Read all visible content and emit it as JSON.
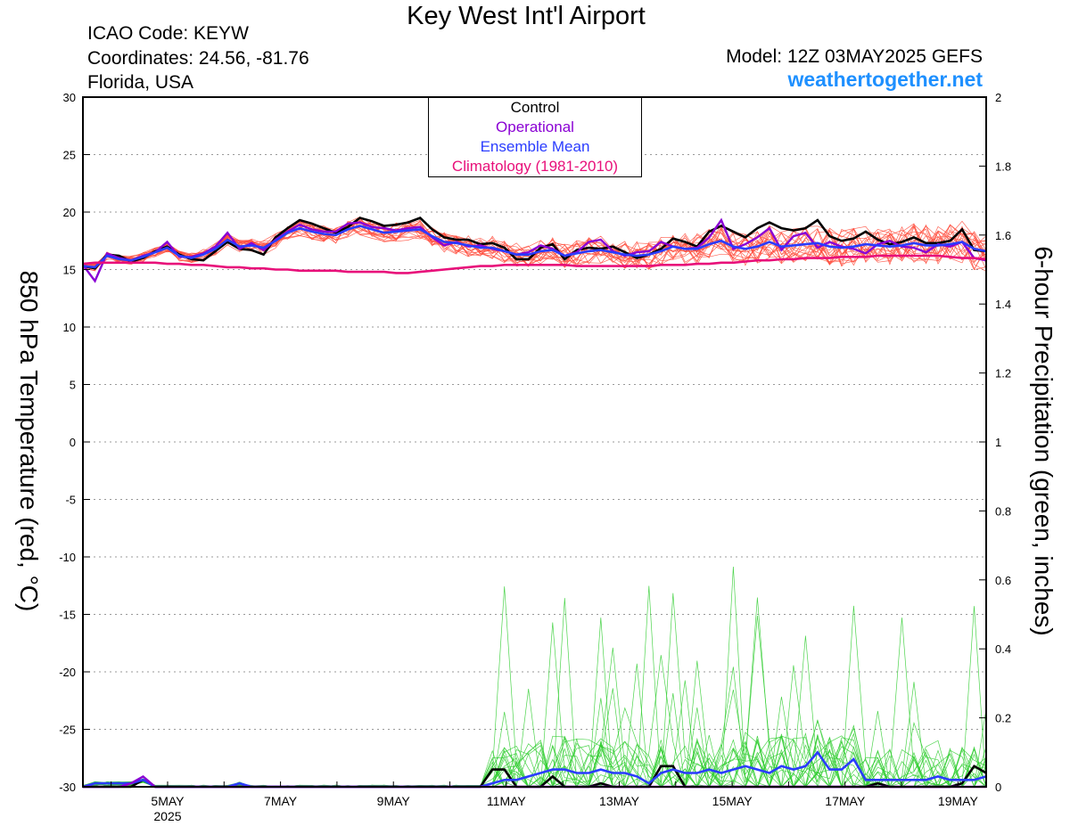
{
  "header": {
    "title": "Key West Int'l Airport",
    "icao": "ICAO Code: KEYW",
    "coordinates": "Coordinates: 24.56, -81.76",
    "region": "Florida, USA",
    "model": "Model: 12Z 03MAY2025 GEFS",
    "site": "weathertogether.net"
  },
  "colors": {
    "members_temp": "#ff4a3a",
    "members_precip": "#2ecc2e",
    "control": "#000000",
    "operational": "#8a00d4",
    "ensemble_mean": "#2a3cff",
    "climatology": "#e8107a",
    "site": "#1e90ff"
  },
  "chart_data": {
    "type": "line",
    "title": "Key West Int'l Airport",
    "ylabel": "850 hPa Temperature (red, °C)",
    "y2label": "6-hour Precipitation (green, inches)",
    "ylim": [
      -30,
      30
    ],
    "y2lim": [
      0,
      2
    ],
    "yticks": [
      30,
      25,
      20,
      15,
      10,
      5,
      0,
      -5,
      -10,
      -15,
      -20,
      -25,
      -30
    ],
    "y2ticks": [
      "2",
      "1.8",
      "1.6",
      "1.4",
      "1.2",
      "1",
      "0.8",
      "0.6",
      "0.4",
      "0.2",
      "0"
    ],
    "x_start": "2025-05-03T12",
    "x_end": "2025-05-19T12",
    "xticks": [
      {
        "day": 5,
        "label": "5MAY",
        "sub": "2025"
      },
      {
        "day": 7,
        "label": "7MAY",
        "sub": ""
      },
      {
        "day": 9,
        "label": "9MAY",
        "sub": ""
      },
      {
        "day": 11,
        "label": "11MAY",
        "sub": ""
      },
      {
        "day": 13,
        "label": "13MAY",
        "sub": ""
      },
      {
        "day": 15,
        "label": "15MAY",
        "sub": ""
      },
      {
        "day": 17,
        "label": "17MAY",
        "sub": ""
      },
      {
        "day": 19,
        "label": "19MAY",
        "sub": ""
      }
    ],
    "legend": [
      "Control",
      "Operational",
      "Ensemble Mean",
      "Climatology (1981-2010)"
    ],
    "legend_position": "top-center",
    "grid": true,
    "temp_series": [
      {
        "name": "Control",
        "role": "control",
        "values": [
          15.3,
          15.1,
          16.3,
          16.2,
          15.7,
          16.0,
          16.6,
          17.0,
          16.3,
          15.9,
          15.8,
          16.6,
          17.4,
          16.8,
          16.7,
          16.3,
          17.8,
          18.6,
          19.3,
          19.0,
          18.6,
          18.2,
          18.7,
          19.5,
          19.2,
          18.8,
          18.9,
          19.1,
          19.5,
          18.5,
          17.8,
          17.6,
          17.6,
          17.2,
          17.3,
          16.9,
          15.9,
          15.9,
          16.9,
          17.2,
          15.9,
          16.7,
          16.9,
          16.8,
          17.0,
          16.5,
          16.0,
          16.3,
          16.8,
          17.7,
          17.4,
          17.0,
          18.3,
          18.8,
          18.3,
          17.8,
          18.6,
          19.1,
          18.6,
          18.4,
          18.6,
          19.3,
          17.9,
          17.5,
          17.7,
          18.3,
          17.6,
          17.2,
          17.4,
          17.8,
          17.3,
          17.3,
          17.5,
          18.5,
          16.7,
          16.6
        ]
      },
      {
        "name": "Operational",
        "role": "operational",
        "values": [
          15.4,
          14.0,
          16.4,
          16.0,
          15.8,
          16.2,
          16.5,
          17.4,
          16.1,
          16.1,
          16.4,
          17.0,
          18.2,
          16.8,
          17.3,
          16.7,
          17.6,
          18.3,
          18.9,
          18.5,
          18.3,
          18.3,
          19.0,
          19.1,
          18.7,
          18.6,
          18.4,
          18.6,
          18.7,
          17.8,
          17.1,
          17.4,
          17.0,
          17.1,
          16.8,
          16.6,
          16.3,
          16.5,
          17.1,
          16.8,
          16.2,
          16.5,
          17.4,
          17.6,
          16.6,
          16.2,
          16.5,
          16.6,
          17.4,
          17.0,
          16.8,
          16.9,
          17.8,
          19.3,
          16.8,
          17.2,
          17.8,
          18.6,
          16.7,
          17.9,
          18.2,
          16.9,
          17.4,
          17.0,
          16.8,
          16.4,
          17.2,
          17.5,
          17.0,
          16.9,
          16.5,
          17.2,
          17.0,
          17.4,
          16.0,
          15.8
        ]
      },
      {
        "name": "Ensemble Mean",
        "role": "ensemble_mean",
        "values": [
          15.3,
          15.2,
          16.2,
          15.9,
          15.8,
          16.1,
          16.5,
          16.9,
          16.2,
          16.0,
          16.3,
          16.8,
          17.6,
          17.0,
          17.1,
          16.9,
          17.5,
          18.2,
          18.6,
          18.3,
          18.1,
          18.0,
          18.5,
          18.8,
          18.5,
          18.2,
          18.3,
          18.4,
          18.5,
          17.9,
          17.4,
          17.3,
          17.1,
          16.9,
          16.9,
          16.6,
          16.3,
          16.3,
          16.6,
          16.7,
          16.2,
          16.4,
          16.6,
          16.7,
          16.5,
          16.3,
          16.2,
          16.3,
          16.6,
          17.0,
          16.8,
          16.8,
          17.2,
          17.5,
          17.0,
          16.8,
          17.0,
          17.4,
          17.0,
          17.1,
          17.2,
          17.3,
          17.0,
          16.9,
          17.0,
          17.2,
          17.1,
          17.0,
          17.1,
          17.3,
          17.1,
          17.1,
          17.2,
          17.4,
          16.8,
          16.6
        ]
      },
      {
        "name": "Climatology (1981-2010)",
        "role": "climatology",
        "values": [
          15.5,
          15.6,
          15.6,
          15.6,
          15.6,
          15.6,
          15.6,
          15.5,
          15.5,
          15.4,
          15.4,
          15.3,
          15.2,
          15.2,
          15.1,
          15.1,
          15.0,
          15.0,
          14.9,
          14.9,
          14.9,
          14.9,
          14.8,
          14.8,
          14.8,
          14.8,
          14.7,
          14.7,
          14.8,
          14.9,
          15.0,
          15.1,
          15.2,
          15.3,
          15.3,
          15.4,
          15.4,
          15.4,
          15.4,
          15.4,
          15.4,
          15.3,
          15.3,
          15.3,
          15.3,
          15.3,
          15.3,
          15.3,
          15.4,
          15.4,
          15.4,
          15.5,
          15.5,
          15.6,
          15.6,
          15.7,
          15.8,
          15.8,
          15.9,
          15.9,
          16.0,
          16.0,
          16.0,
          16.1,
          16.1,
          16.1,
          16.2,
          16.2,
          16.2,
          16.2,
          16.2,
          16.2,
          16.1,
          16.0,
          16.0,
          15.9
        ]
      }
    ],
    "precip_series": [
      {
        "name": "Control",
        "role": "control",
        "values": [
          0.0,
          0.0,
          0.0,
          0.0,
          0.0,
          0.02,
          0.0,
          0.0,
          0.0,
          0.0,
          0.0,
          0.0,
          0.0,
          0.0,
          0.0,
          0.0,
          0.0,
          0.0,
          0.0,
          0.0,
          0.0,
          0.0,
          0.0,
          0.0,
          0.0,
          0.0,
          0.0,
          0.0,
          0.0,
          0.0,
          0.0,
          0.0,
          0.0,
          0.0,
          0.05,
          0.05,
          0.0,
          0.0,
          0.0,
          0.03,
          0.0,
          0.0,
          0.0,
          0.01,
          0.0,
          0.0,
          0.0,
          0.0,
          0.06,
          0.06,
          0.0,
          0.0,
          0.0,
          0.0,
          0.0,
          0.0,
          0.0,
          0.0,
          0.0,
          0.0,
          0.0,
          0.0,
          0.0,
          0.0,
          0.0,
          0.0,
          0.01,
          0.0,
          0.0,
          0.0,
          0.0,
          0.0,
          0.0,
          0.01,
          0.06,
          0.04
        ]
      },
      {
        "name": "Ensemble Mean",
        "role": "ensemble_mean",
        "values": [
          0.0,
          0.01,
          0.01,
          0.01,
          0.01,
          0.02,
          0.0,
          0.0,
          0.0,
          0.0,
          0.0,
          0.0,
          0.0,
          0.01,
          0.0,
          0.0,
          0.0,
          0.0,
          0.0,
          0.0,
          0.0,
          0.0,
          0.0,
          0.0,
          0.0,
          0.0,
          0.0,
          0.0,
          0.0,
          0.0,
          0.0,
          0.0,
          0.0,
          0.0,
          0.01,
          0.02,
          0.02,
          0.03,
          0.04,
          0.05,
          0.05,
          0.04,
          0.04,
          0.05,
          0.04,
          0.04,
          0.03,
          0.01,
          0.04,
          0.05,
          0.04,
          0.04,
          0.05,
          0.04,
          0.05,
          0.06,
          0.05,
          0.04,
          0.06,
          0.05,
          0.06,
          0.1,
          0.05,
          0.05,
          0.08,
          0.02,
          0.02,
          0.02,
          0.02,
          0.02,
          0.02,
          0.03,
          0.02,
          0.02,
          0.02,
          0.03
        ]
      },
      {
        "name": "Operational",
        "role": "operational",
        "values": [
          0.0,
          0.0,
          0.0,
          0.0,
          0.01,
          0.03,
          0.0,
          0.0,
          0.0,
          0.0,
          0.0,
          0.0,
          0.0,
          0.0,
          0.0,
          0.0,
          0.0,
          0.0,
          0.0,
          0.0,
          0.0,
          0.0,
          0.0,
          0.0,
          0.0,
          0.0,
          0.0,
          0.0,
          0.0,
          0.0,
          0.0,
          0.0,
          0.0,
          0.0,
          0.0,
          0.0,
          0.0,
          0.0,
          0.0,
          0.0,
          0.0,
          0.0,
          0.0,
          0.0,
          0.0,
          0.0,
          0.0,
          0.0,
          0.0,
          0.0,
          0.0,
          0.0,
          0.0,
          0.0,
          0.0,
          0.0,
          0.0,
          0.0,
          0.0,
          0.0,
          0.0,
          0.0,
          0.0,
          0.0,
          0.0,
          0.0,
          0.0,
          0.0,
          0.0,
          0.0,
          0.0,
          0.0,
          0.0,
          0.0,
          0.0,
          0.0
        ]
      }
    ]
  }
}
